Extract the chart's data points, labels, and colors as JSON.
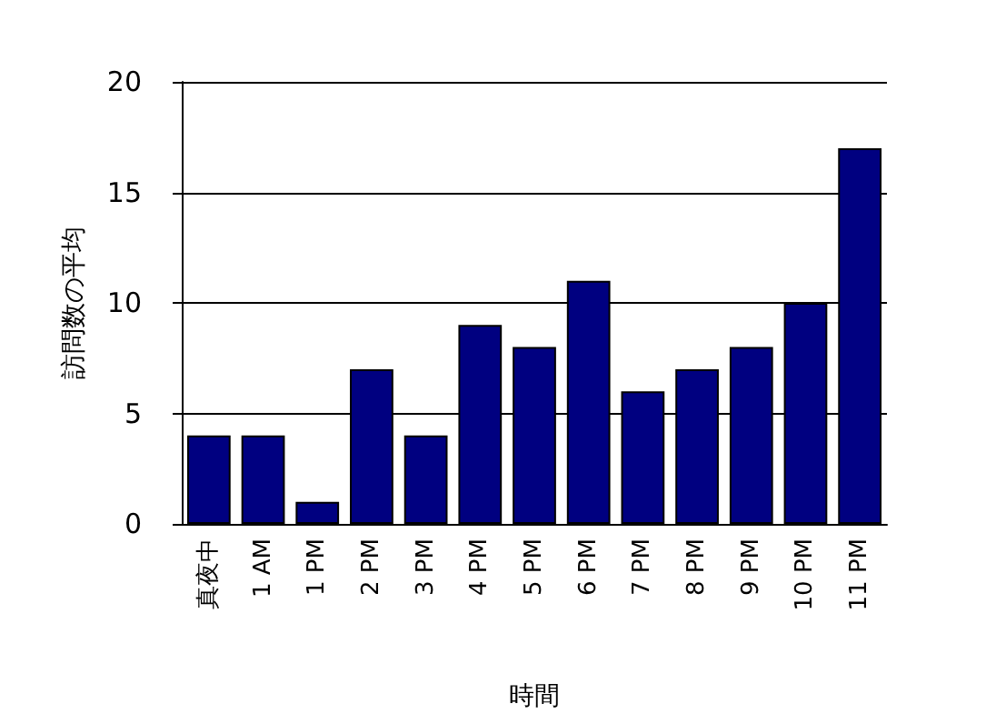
{
  "chart_data": {
    "type": "bar",
    "xlabel": "時間",
    "ylabel": "訪問数の平均",
    "categories": [
      "真夜中",
      "1 AM",
      "1 PM",
      "2 PM",
      "3 PM",
      "4 PM",
      "5 PM",
      "6 PM",
      "7 PM",
      "8 PM",
      "9 PM",
      "10 PM",
      "11 PM"
    ],
    "values": [
      4,
      4,
      1,
      7,
      4,
      9,
      8,
      11,
      6,
      7,
      8,
      10,
      17
    ],
    "color": "#000080",
    "ylim": [
      0,
      20
    ],
    "yticks": [
      0,
      5,
      10,
      15,
      20
    ],
    "grid": "y"
  }
}
